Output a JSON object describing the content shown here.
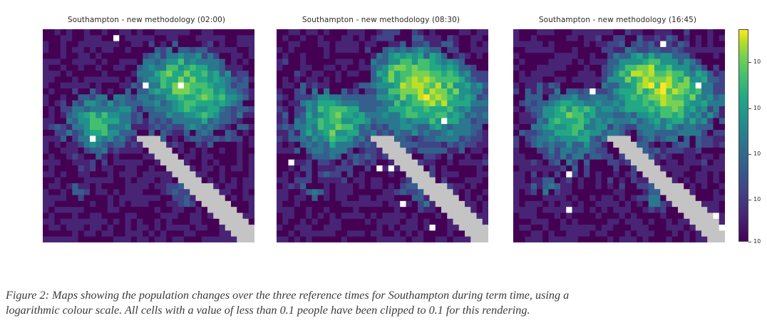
{
  "figure": {
    "panels": [
      {
        "title": "Southampton - new methodology (02:00)",
        "reference_time": "02:00"
      },
      {
        "title": "Southampton - new methodology (08:30)",
        "reference_time": "08:30"
      },
      {
        "title": "Southampton - new methodology (16:45)",
        "reference_time": "16:45"
      }
    ],
    "colorbar": {
      "scale": "logarithmic",
      "colormap": "viridis",
      "clipped_color": "#c4c4c4",
      "tick_labels": [
        "10",
        "10",
        "10",
        "10",
        "10"
      ]
    }
  },
  "caption": {
    "line1": "Figure 2: Maps showing the population changes over the three reference times for Southampton during term time, using a",
    "line2": "logarithmic colour scale. All cells with a value of less than 0.1 people have been clipped to 0.1 for this rendering."
  }
}
